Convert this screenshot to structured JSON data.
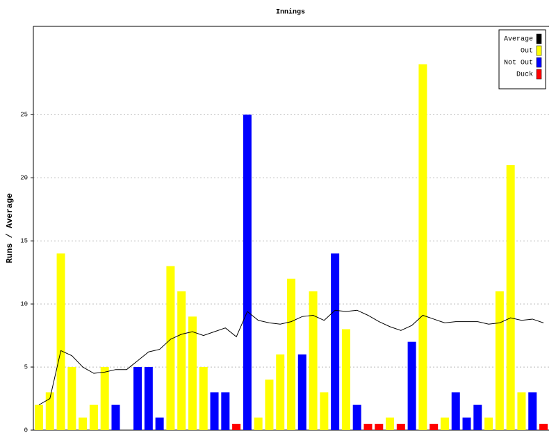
{
  "chart_data": {
    "type": "bar",
    "title": "Innings",
    "y_label": "Runs / Average",
    "ylim": [
      0,
      32
    ],
    "yticks": [
      0,
      5,
      10,
      15,
      20,
      25
    ],
    "grid": true,
    "legend": "top-right",
    "series": [
      {
        "name": "Average",
        "color": "#000000",
        "type": "line",
        "values": [
          2.0,
          2.5,
          6.3,
          5.9,
          5.0,
          4.5,
          4.6,
          4.8,
          4.8,
          5.5,
          6.2,
          6.4,
          7.2,
          7.6,
          7.8,
          7.5,
          7.8,
          8.1,
          7.4,
          9.4,
          8.7,
          8.5,
          8.4,
          8.6,
          9.0,
          9.1,
          8.7,
          9.5,
          9.4,
          9.5,
          9.1,
          8.6,
          8.2,
          7.9,
          8.3,
          9.1,
          8.8,
          8.5,
          8.6,
          8.6,
          8.6,
          8.4,
          8.5,
          8.9,
          8.7,
          8.8,
          8.5
        ]
      },
      {
        "name": "Out",
        "color": "#ffff00",
        "values": [
          2,
          3,
          14,
          5,
          1,
          2,
          5,
          null,
          null,
          null,
          null,
          null,
          13,
          11,
          9,
          5,
          null,
          null,
          null,
          null,
          1,
          4,
          6,
          12,
          null,
          11,
          3,
          null,
          8,
          null,
          null,
          null,
          1,
          null,
          null,
          29,
          null,
          1,
          null,
          null,
          null,
          1,
          11,
          21,
          3,
          null,
          null
        ]
      },
      {
        "name": "Not Out",
        "color": "#0000ff",
        "values": [
          null,
          null,
          null,
          null,
          null,
          null,
          null,
          2,
          0,
          5,
          5,
          1,
          null,
          null,
          null,
          null,
          3,
          3,
          null,
          25,
          null,
          null,
          null,
          null,
          6,
          null,
          null,
          14,
          null,
          2,
          null,
          null,
          null,
          null,
          7,
          null,
          null,
          null,
          3,
          1,
          2,
          null,
          null,
          null,
          null,
          3,
          null
        ]
      },
      {
        "name": "Duck",
        "color": "#ff0000",
        "values": [
          null,
          null,
          null,
          null,
          null,
          null,
          null,
          null,
          null,
          null,
          null,
          null,
          null,
          null,
          null,
          null,
          null,
          null,
          0.5,
          null,
          null,
          null,
          null,
          null,
          null,
          null,
          null,
          null,
          null,
          null,
          0.5,
          0.5,
          null,
          0.5,
          null,
          null,
          0.5,
          null,
          null,
          null,
          null,
          null,
          null,
          null,
          null,
          null,
          0.5
        ]
      }
    ]
  }
}
